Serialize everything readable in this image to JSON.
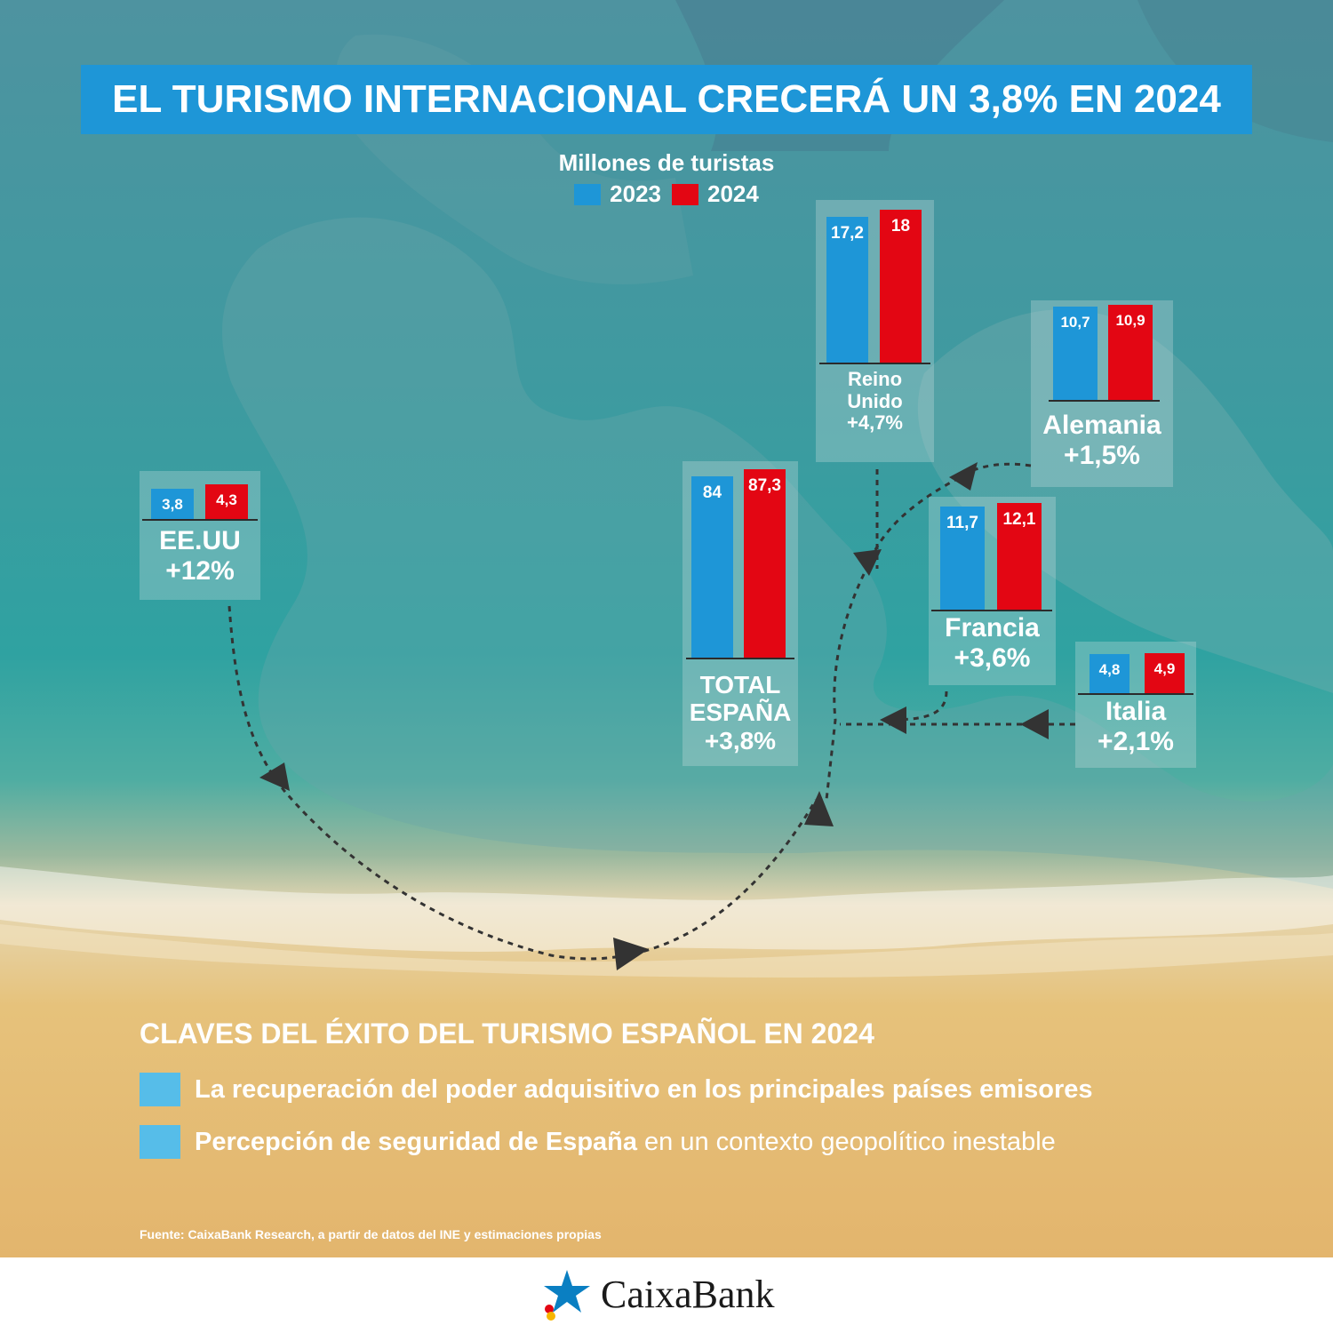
{
  "title": "EL TURISMO INTERNACIONAL CRECERÁ UN 3,8% EN 2024",
  "legend": {
    "title": "Millones de turistas",
    "items": [
      {
        "label": "2023",
        "color": "#1e96d7"
      },
      {
        "label": "2024",
        "color": "#e30613"
      }
    ]
  },
  "chart_data": {
    "type": "bar",
    "unit": "Millones de turistas",
    "series": [
      {
        "name": "2023",
        "color": "#1e96d7"
      },
      {
        "name": "2024",
        "color": "#e30613"
      }
    ],
    "markets": [
      {
        "id": "reino-unido",
        "label": "Reino\nUnido",
        "growth": "+4,7%",
        "values": [
          17.2,
          18
        ],
        "value_labels": [
          "17,2",
          "18"
        ]
      },
      {
        "id": "alemania",
        "label": "Alemania",
        "growth": "+1,5%",
        "values": [
          10.7,
          10.9
        ],
        "value_labels": [
          "10,7",
          "10,9"
        ]
      },
      {
        "id": "francia",
        "label": "Francia",
        "growth": "+3,6%",
        "values": [
          11.7,
          12.1
        ],
        "value_labels": [
          "11,7",
          "12,1"
        ]
      },
      {
        "id": "italia",
        "label": "Italia",
        "growth": "+2,1%",
        "values": [
          4.8,
          4.9
        ],
        "value_labels": [
          "4,8",
          "4,9"
        ]
      },
      {
        "id": "eeuu",
        "label": "EE.UU",
        "growth": "+12%",
        "values": [
          3.8,
          4.3
        ],
        "value_labels": [
          "3,8",
          "4,3"
        ]
      },
      {
        "id": "total",
        "label": "TOTAL\nESPAÑA",
        "growth": "+3,8%",
        "values": [
          84,
          87.3
        ],
        "value_labels": [
          "84",
          "87,3"
        ]
      }
    ]
  },
  "keys": {
    "title": "CLAVES DEL ÉXITO DEL TURISMO ESPAÑOL EN 2024",
    "items": [
      {
        "strong": "La recuperación del poder adquisitivo en los principales países emisores",
        "light": ""
      },
      {
        "strong": "Percepción de seguridad de España",
        "light": " en un contexto geopolítico inestable"
      }
    ]
  },
  "source": "Fuente: CaixaBank Research, a partir de datos del INE y estimaciones propias",
  "logo": {
    "text": "CaixaBank"
  }
}
